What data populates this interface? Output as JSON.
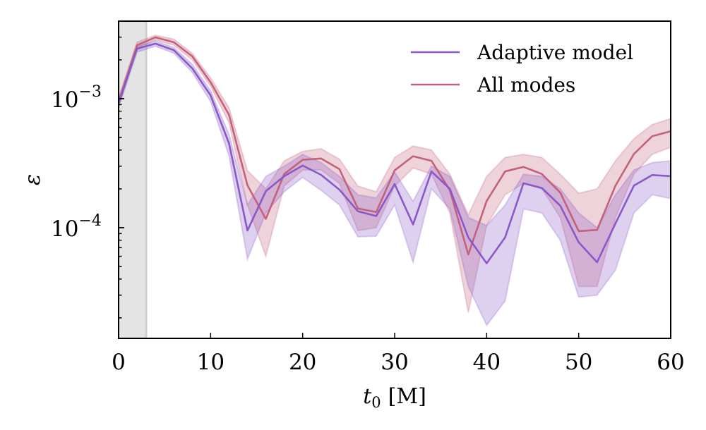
{
  "chart_data": {
    "type": "line",
    "title": "",
    "xlabel": "t0 [M]",
    "xlabel_main": "t",
    "xlabel_sub": "0",
    "xlabel_unit": "[M]",
    "ylabel": "ε",
    "xlim": [
      0,
      60
    ],
    "ylim": [
      1.4e-05,
      0.004
    ],
    "yscale": "log",
    "grid": false,
    "legend_position": "top-right",
    "x_ticks": [
      0,
      10,
      20,
      30,
      40,
      50,
      60
    ],
    "x_tick_labels": [
      "0",
      "10",
      "20",
      "30",
      "40",
      "50",
      "60"
    ],
    "y_ticks": [
      0.001,
      0.0001
    ],
    "y_tick_labels": [
      {
        "base": "10",
        "exp": "−3"
      },
      {
        "base": "10",
        "exp": "−4"
      }
    ],
    "shaded_region": {
      "x_start": 0,
      "x_end": 3,
      "color": "#e4e4e4"
    },
    "x": [
      0,
      2,
      4,
      6,
      8,
      10,
      12,
      14,
      16,
      18,
      20,
      22,
      24,
      26,
      28,
      30,
      32,
      34,
      36,
      38,
      40,
      42,
      44,
      46,
      48,
      50,
      52,
      54,
      56,
      58,
      60
    ],
    "series": [
      {
        "name": "All modes",
        "color": "#c4617b",
        "values": [
          0.00095,
          0.0026,
          0.00299,
          0.00274,
          0.00213,
          0.00134,
          0.00075,
          0.000213,
          0.000117,
          0.000261,
          0.000336,
          0.000344,
          0.000284,
          0.000141,
          0.000132,
          0.000278,
          0.000358,
          0.00033,
          0.000195,
          6.2e-05,
          0.000161,
          0.000273,
          0.000296,
          0.000261,
          0.000187,
          9.4e-05,
          9.6e-05,
          0.000212,
          0.000373,
          0.000512,
          0.00056
        ],
        "lower": [
          0.00088,
          0.00245,
          0.00285,
          0.0026,
          0.002,
          0.00125,
          0.00065,
          0.00015,
          6e-05,
          0.00021,
          0.00028,
          0.00028,
          0.00022,
          9.5e-05,
          0.0001,
          0.00021,
          0.00029,
          0.00026,
          0.00013,
          2.2e-05,
          0.000104,
          0.00018,
          0.00022,
          0.0002,
          0.00012,
          3.5e-05,
          3.5e-05,
          0.00012,
          0.00026,
          0.00037,
          0.00042
        ],
        "upper": [
          0.00102,
          0.00275,
          0.0031,
          0.0029,
          0.00225,
          0.00145,
          0.00085,
          0.000277,
          0.0002,
          0.00033,
          0.00039,
          0.00041,
          0.00034,
          0.00021,
          0.00019,
          0.00035,
          0.00043,
          0.0004,
          0.00026,
          0.000126,
          0.00025,
          0.00035,
          0.00037,
          0.00035,
          0.00026,
          0.000185,
          0.0002,
          0.00033,
          0.00049,
          0.00063,
          0.0007
        ]
      },
      {
        "name": "Adaptive model",
        "color": "#8a58c8",
        "values": [
          0.00092,
          0.00244,
          0.00267,
          0.00238,
          0.00172,
          0.00106,
          0.00045,
          9.5e-05,
          0.000192,
          0.000251,
          0.000303,
          0.000257,
          0.000197,
          0.000134,
          0.000123,
          0.000218,
          0.000106,
          0.000273,
          0.0002,
          8.4e-05,
          5.3e-05,
          8.4e-05,
          0.000221,
          0.000203,
          0.000148,
          7.7e-05,
          5.4e-05,
          0.000108,
          0.000212,
          0.000256,
          0.000251
        ],
        "lower": [
          0.00085,
          0.0023,
          0.00255,
          0.00225,
          0.0016,
          0.00095,
          0.00036,
          5.7e-05,
          0.00013,
          0.00019,
          0.000245,
          0.000195,
          0.00015,
          8.5e-05,
          8.6e-05,
          0.00015,
          5.4e-05,
          0.0002,
          0.00014,
          3.5e-05,
          1.75e-05,
          2.7e-05,
          0.00014,
          0.00013,
          8e-05,
          2.9e-05,
          3e-05,
          4.7e-05,
          0.00013,
          0.00018,
          0.000168
        ],
        "upper": [
          0.00098,
          0.00255,
          0.0028,
          0.0025,
          0.00185,
          0.00115,
          0.00053,
          0.00015,
          0.00025,
          0.0003,
          0.00037,
          0.00032,
          0.00025,
          0.00018,
          0.00017,
          0.00027,
          0.00016,
          0.0003,
          0.00025,
          0.00012,
          0.000104,
          0.00015,
          0.00026,
          0.00025,
          0.0002,
          0.00013,
          0.0001,
          0.00018,
          0.00028,
          0.00032,
          0.00033
        ]
      }
    ],
    "legend": [
      {
        "label": "Adaptive model",
        "color": "#8a58c8"
      },
      {
        "label": "All modes",
        "color": "#c4617b"
      }
    ]
  }
}
